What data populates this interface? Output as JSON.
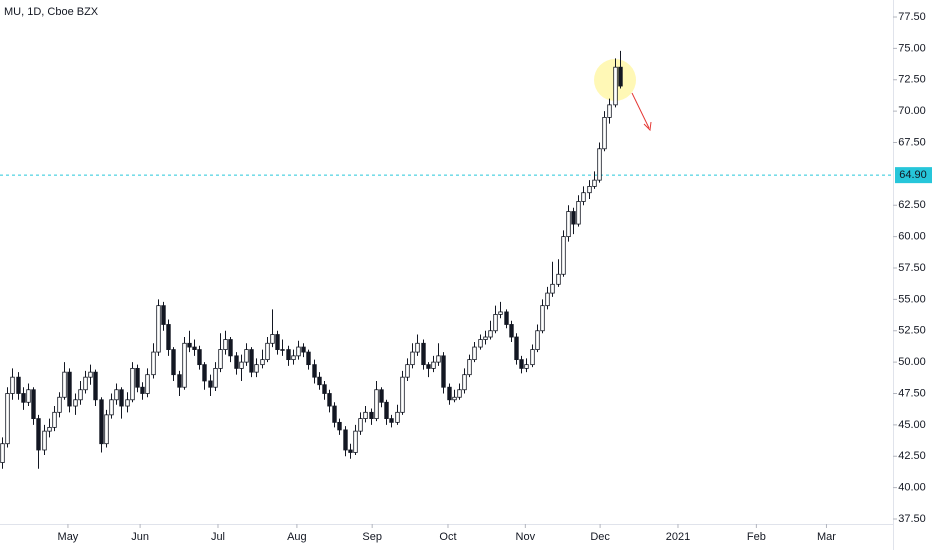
{
  "chart_data": {
    "type": "candlestick",
    "title": "MU, 1D, Cboe BZX",
    "up_color": "#ffffff",
    "down_color": "#131722",
    "outline_color": "#131722",
    "ylim": [
      37.5,
      77.5
    ],
    "yticks": [
      {
        "value": 37.5,
        "label": "37.50"
      },
      {
        "value": 40,
        "label": "40.00"
      },
      {
        "value": 42.5,
        "label": "42.50"
      },
      {
        "value": 45,
        "label": "45.00"
      },
      {
        "value": 47.5,
        "label": "47.50"
      },
      {
        "value": 50,
        "label": "50.00"
      },
      {
        "value": 52.5,
        "label": "52.50"
      },
      {
        "value": 55,
        "label": "55.00"
      },
      {
        "value": 57.5,
        "label": "57.50"
      },
      {
        "value": 60,
        "label": "60.00"
      },
      {
        "value": 62.5,
        "label": "62.50"
      },
      {
        "value": 67.5,
        "label": "67.50"
      },
      {
        "value": 70,
        "label": "70.00"
      },
      {
        "value": 72.5,
        "label": "72.50"
      },
      {
        "value": 75,
        "label": "75.00"
      },
      {
        "value": 77.5,
        "label": "77.50"
      }
    ],
    "xlim": [
      0,
      172
    ],
    "xticks": [
      {
        "value": 12.7,
        "label": "May"
      },
      {
        "value": 26.6,
        "label": "Jun"
      },
      {
        "value": 41.6,
        "label": "Jul"
      },
      {
        "value": 56.8,
        "label": "Aug"
      },
      {
        "value": 71.3,
        "label": "Sep"
      },
      {
        "value": 85.9,
        "label": "Oct"
      },
      {
        "value": 100.8,
        "label": "Nov"
      },
      {
        "value": 115.2,
        "label": "Dec"
      },
      {
        "value": 130.2,
        "label": "2021"
      },
      {
        "value": 145.3,
        "label": "Feb"
      },
      {
        "value": 158.8,
        "label": "Mar"
      }
    ],
    "price_line": {
      "value": 64.9,
      "label": "64.90",
      "color": "#26c6da"
    },
    "ohlc": [
      [
        42.0,
        44.0,
        41.5,
        43.5
      ],
      [
        43.5,
        48.0,
        43.2,
        47.5
      ],
      [
        47.5,
        49.5,
        47.0,
        48.8
      ],
      [
        48.8,
        49.2,
        47.0,
        47.5
      ],
      [
        47.5,
        48.0,
        46.2,
        46.8
      ],
      [
        46.8,
        48.3,
        46.5,
        47.8
      ],
      [
        47.8,
        48.0,
        45.0,
        45.5
      ],
      [
        45.5,
        45.8,
        41.5,
        43.0
      ],
      [
        43.0,
        45.0,
        42.6,
        44.5
      ],
      [
        44.5,
        45.5,
        44.0,
        44.8
      ],
      [
        44.8,
        46.5,
        44.5,
        46.0
      ],
      [
        46.0,
        47.6,
        45.6,
        47.2
      ],
      [
        47.2,
        50.0,
        47.0,
        49.2
      ],
      [
        49.2,
        49.5,
        46.0,
        46.5
      ],
      [
        46.5,
        47.5,
        45.8,
        47.0
      ],
      [
        47.0,
        48.5,
        46.6,
        47.8
      ],
      [
        47.8,
        49.3,
        47.5,
        48.8
      ],
      [
        48.8,
        49.8,
        48.2,
        49.2
      ],
      [
        49.2,
        49.4,
        46.5,
        47.0
      ],
      [
        47.0,
        47.2,
        42.8,
        43.5
      ],
      [
        43.5,
        46.2,
        43.2,
        45.8
      ],
      [
        45.8,
        47.5,
        45.5,
        47.0
      ],
      [
        47.0,
        48.3,
        46.6,
        47.8
      ],
      [
        47.8,
        48.0,
        45.5,
        46.5
      ],
      [
        46.5,
        47.6,
        46.0,
        47.0
      ],
      [
        47.0,
        50.0,
        46.8,
        49.5
      ],
      [
        49.5,
        49.8,
        47.6,
        48.0
      ],
      [
        48.0,
        48.4,
        47.0,
        47.5
      ],
      [
        47.5,
        49.5,
        47.2,
        49.0
      ],
      [
        49.0,
        51.5,
        48.7,
        50.8
      ],
      [
        50.8,
        55.0,
        50.5,
        54.5
      ],
      [
        54.5,
        54.8,
        52.5,
        53.0
      ],
      [
        53.0,
        53.4,
        50.5,
        51.0
      ],
      [
        51.0,
        51.2,
        48.5,
        49.0
      ],
      [
        49.0,
        49.3,
        47.3,
        48.0
      ],
      [
        48.0,
        52.0,
        47.8,
        51.5
      ],
      [
        51.5,
        52.5,
        50.8,
        51.2
      ],
      [
        51.2,
        51.8,
        50.5,
        51.0
      ],
      [
        51.0,
        51.3,
        49.4,
        49.8
      ],
      [
        49.8,
        50.0,
        47.8,
        48.5
      ],
      [
        48.5,
        49.0,
        47.3,
        48.0
      ],
      [
        48.0,
        50.0,
        47.7,
        49.5
      ],
      [
        49.5,
        52.3,
        49.2,
        51.0
      ],
      [
        51.0,
        52.5,
        50.6,
        51.8
      ],
      [
        51.8,
        52.0,
        50.0,
        50.5
      ],
      [
        50.5,
        50.8,
        49.0,
        49.5
      ],
      [
        49.5,
        50.6,
        48.5,
        50.0
      ],
      [
        50.0,
        51.5,
        49.7,
        51.0
      ],
      [
        51.0,
        51.2,
        48.8,
        49.2
      ],
      [
        49.2,
        50.3,
        48.8,
        49.8
      ],
      [
        49.8,
        51.0,
        49.5,
        50.2
      ],
      [
        50.2,
        52.0,
        50.0,
        51.5
      ],
      [
        51.5,
        54.2,
        51.2,
        52.2
      ],
      [
        52.2,
        52.5,
        50.6,
        51.0
      ],
      [
        51.0,
        51.8,
        50.5,
        51.0
      ],
      [
        51.0,
        51.3,
        49.7,
        50.2
      ],
      [
        50.2,
        51.0,
        49.8,
        50.5
      ],
      [
        50.5,
        51.7,
        50.2,
        51.2
      ],
      [
        51.2,
        51.5,
        50.4,
        50.8
      ],
      [
        50.8,
        51.0,
        49.4,
        49.8
      ],
      [
        49.8,
        50.2,
        48.3,
        48.8
      ],
      [
        48.8,
        49.2,
        47.8,
        48.2
      ],
      [
        48.2,
        48.5,
        47.0,
        47.5
      ],
      [
        47.5,
        47.8,
        46.0,
        46.5
      ],
      [
        46.5,
        46.8,
        44.8,
        45.2
      ],
      [
        45.2,
        45.5,
        44.2,
        44.6
      ],
      [
        44.6,
        44.9,
        42.5,
        43.0
      ],
      [
        43.0,
        43.5,
        42.3,
        42.8
      ],
      [
        42.8,
        45.0,
        42.6,
        44.5
      ],
      [
        44.5,
        46.0,
        44.2,
        45.5
      ],
      [
        45.5,
        46.5,
        45.2,
        46.0
      ],
      [
        46.0,
        46.3,
        45.0,
        45.5
      ],
      [
        45.5,
        48.5,
        45.3,
        47.8
      ],
      [
        47.8,
        48.0,
        46.4,
        46.8
      ],
      [
        46.8,
        47.0,
        45.0,
        45.5
      ],
      [
        45.5,
        45.8,
        44.8,
        45.2
      ],
      [
        45.2,
        46.6,
        45.0,
        46.0
      ],
      [
        46.0,
        49.3,
        45.8,
        48.8
      ],
      [
        48.8,
        50.3,
        48.5,
        49.8
      ],
      [
        49.8,
        51.5,
        49.5,
        50.8
      ],
      [
        50.8,
        52.2,
        50.5,
        51.5
      ],
      [
        51.5,
        51.8,
        49.4,
        49.8
      ],
      [
        49.8,
        50.0,
        48.8,
        49.5
      ],
      [
        49.5,
        50.5,
        49.2,
        50.0
      ],
      [
        50.0,
        51.5,
        49.7,
        50.5
      ],
      [
        50.5,
        50.8,
        47.5,
        48.0
      ],
      [
        48.0,
        48.3,
        46.6,
        47.0
      ],
      [
        47.0,
        47.8,
        46.8,
        47.2
      ],
      [
        47.2,
        48.3,
        47.0,
        47.8
      ],
      [
        47.8,
        49.5,
        47.5,
        49.0
      ],
      [
        49.0,
        50.6,
        48.8,
        50.2
      ],
      [
        50.2,
        51.6,
        50.0,
        51.2
      ],
      [
        51.2,
        52.2,
        51.0,
        51.8
      ],
      [
        51.8,
        52.5,
        51.4,
        52.0
      ],
      [
        52.0,
        53.3,
        51.8,
        52.5
      ],
      [
        52.5,
        54.5,
        52.3,
        53.8
      ],
      [
        53.8,
        54.8,
        53.5,
        54.0
      ],
      [
        54.0,
        54.2,
        52.7,
        53.0
      ],
      [
        53.0,
        53.3,
        51.6,
        52.0
      ],
      [
        52.0,
        52.3,
        49.8,
        50.2
      ],
      [
        50.2,
        50.5,
        49.1,
        49.5
      ],
      [
        49.5,
        50.3,
        49.2,
        49.8
      ],
      [
        49.8,
        51.4,
        49.6,
        51.0
      ],
      [
        51.0,
        53.0,
        50.8,
        52.5
      ],
      [
        52.5,
        55.0,
        52.3,
        54.5
      ],
      [
        54.5,
        56.0,
        54.2,
        55.5
      ],
      [
        55.5,
        58.0,
        55.2,
        56.2
      ],
      [
        56.2,
        58.2,
        56.0,
        57.0
      ],
      [
        57.0,
        60.5,
        56.8,
        60.0
      ],
      [
        60.0,
        62.5,
        59.6,
        62.0
      ],
      [
        62.0,
        62.3,
        60.2,
        61.0
      ],
      [
        61.0,
        63.3,
        60.8,
        62.8
      ],
      [
        62.8,
        64.0,
        62.5,
        63.5
      ],
      [
        63.5,
        64.5,
        63.0,
        64.0
      ],
      [
        64.0,
        65.2,
        63.8,
        64.5
      ],
      [
        64.5,
        67.5,
        64.3,
        67.0
      ],
      [
        67.0,
        70.0,
        66.8,
        69.5
      ],
      [
        69.5,
        71.0,
        69.0,
        70.5
      ],
      [
        70.5,
        74.2,
        70.3,
        73.5
      ],
      [
        73.5,
        74.8,
        71.8,
        72.0
      ]
    ]
  }
}
